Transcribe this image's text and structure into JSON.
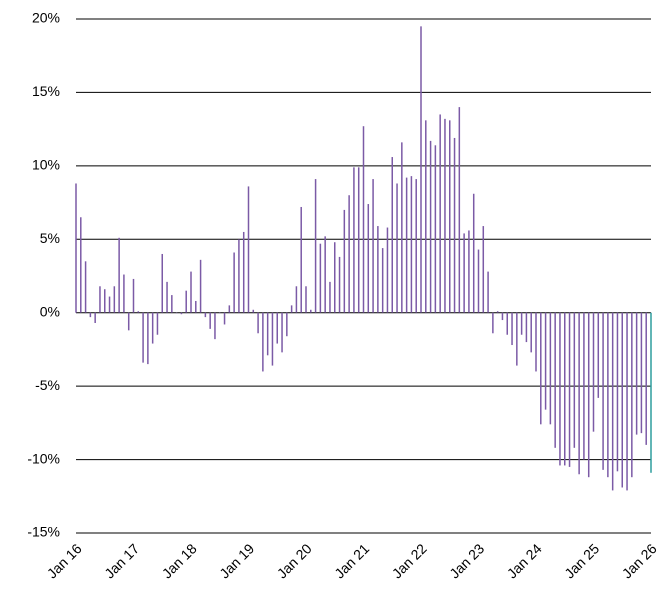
{
  "chart_data": {
    "type": "bar",
    "categories": [
      "Jan 16",
      null,
      null,
      null,
      null,
      null,
      null,
      null,
      null,
      null,
      null,
      null,
      "Jan 17",
      null,
      null,
      null,
      null,
      null,
      null,
      null,
      null,
      null,
      null,
      null,
      "Jan 18",
      null,
      null,
      null,
      null,
      null,
      null,
      null,
      null,
      null,
      null,
      null,
      "Jan 19",
      null,
      null,
      null,
      null,
      null,
      null,
      null,
      null,
      null,
      null,
      null,
      "Jan 20",
      null,
      null,
      null,
      null,
      null,
      null,
      null,
      null,
      null,
      null,
      null,
      "Jan 21",
      null,
      null,
      null,
      null,
      null,
      null,
      null,
      null,
      null,
      null,
      null,
      "Jan 22",
      null,
      null,
      null,
      null,
      null,
      null,
      null,
      null,
      null,
      null,
      null,
      "Jan 23",
      null,
      null,
      null,
      null,
      null,
      null,
      null,
      null,
      null,
      null,
      null,
      "Jan 24",
      null,
      null,
      null,
      null,
      null,
      null,
      null,
      null,
      null,
      null,
      null,
      "Jan 25",
      null,
      null,
      null,
      null,
      null,
      null,
      null,
      null,
      null,
      null,
      null,
      "Jan 26"
    ],
    "series": [
      {
        "color": "#7b5aa6",
        "values": [
          8.8,
          6.5,
          3.5,
          -0.3,
          -0.7,
          1.8,
          1.6,
          1.1,
          1.8,
          5.1,
          2.6,
          -1.2,
          2.3,
          0.1,
          -3.4,
          -3.5,
          -2.1,
          -1.5,
          4.0,
          2.1,
          1.2,
          0,
          -0.1,
          1.5,
          2.8,
          0.8,
          3.6,
          -0.3,
          -1.1,
          -1.8,
          0,
          -0.8,
          0.5,
          4.1,
          5.0,
          5.5,
          8.6,
          0.2,
          -1.4,
          -4.0,
          -2.9,
          -3.6,
          -2.1,
          -2.7,
          -1.6,
          0.5,
          1.8,
          7.2,
          1.8,
          0.2,
          9.1,
          4.7,
          5.2,
          2.1,
          4.8,
          3.8,
          7.0,
          8.0,
          9.9,
          9.9,
          12.7,
          7.4,
          9.1,
          5.9,
          4.4,
          5.8,
          10.6,
          8.8,
          11.6,
          9.2,
          9.3,
          9.1,
          19.5,
          13.1,
          11.7,
          11.4,
          13.5,
          13.2,
          13.1,
          11.9,
          14.0,
          5.4,
          5.6,
          8.1,
          4.3,
          5.9,
          2.8,
          -1.4,
          0.1,
          -0.5,
          -1.5,
          -2.2,
          -3.6,
          -1.5,
          -2.0,
          -2.7,
          -4.0,
          -7.6,
          -6.6,
          -7.6,
          -9.2,
          -10.4,
          -10.4,
          -10.5,
          -9.2,
          -11.0,
          -10.0,
          -11.2,
          -8.1,
          -5.8,
          -10.7,
          -11.2,
          -12.1,
          -10.8,
          -11.9,
          -12.1,
          -11.2,
          -8.3,
          -8.2,
          -9.0,
          null
        ]
      },
      {
        "color": "#2e9e9e",
        "values": [
          null,
          null,
          null,
          null,
          null,
          null,
          null,
          null,
          null,
          null,
          null,
          null,
          null,
          null,
          null,
          null,
          null,
          null,
          null,
          null,
          null,
          null,
          null,
          null,
          null,
          null,
          null,
          null,
          null,
          null,
          null,
          null,
          null,
          null,
          null,
          null,
          null,
          null,
          null,
          null,
          null,
          null,
          null,
          null,
          null,
          null,
          null,
          null,
          null,
          null,
          null,
          null,
          null,
          null,
          null,
          null,
          null,
          null,
          null,
          null,
          null,
          null,
          null,
          null,
          null,
          null,
          null,
          null,
          null,
          null,
          null,
          null,
          null,
          null,
          null,
          null,
          null,
          null,
          null,
          null,
          null,
          null,
          null,
          null,
          null,
          null,
          null,
          null,
          null,
          null,
          null,
          null,
          null,
          null,
          null,
          null,
          null,
          null,
          null,
          null,
          null,
          null,
          null,
          null,
          null,
          null,
          null,
          null,
          null,
          null,
          null,
          null,
          null,
          null,
          null,
          null,
          null,
          null,
          null,
          null,
          -10.9
        ]
      }
    ],
    "ylim": [
      -15,
      20
    ],
    "yticks": [
      {
        "value": -15,
        "label": "-15%"
      },
      {
        "value": -10,
        "label": "-10%"
      },
      {
        "value": -5,
        "label": "-5%"
      },
      {
        "value": 0,
        "label": "0%"
      },
      {
        "value": 5,
        "label": "5%"
      },
      {
        "value": 10,
        "label": "10%"
      },
      {
        "value": 15,
        "label": "15%"
      },
      {
        "value": 20,
        "label": "20%"
      }
    ],
    "grid": true
  }
}
